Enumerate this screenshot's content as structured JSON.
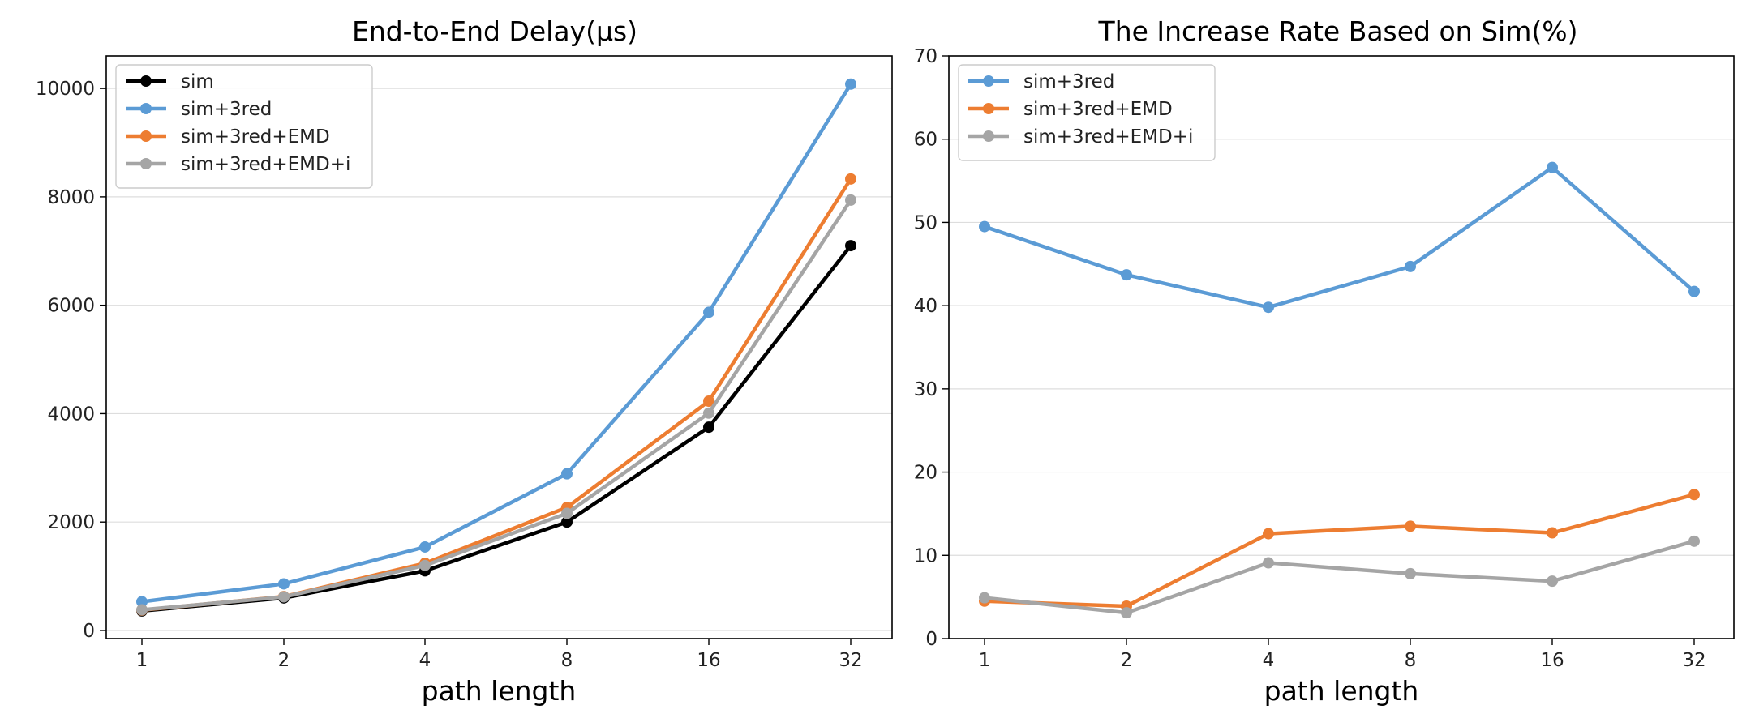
{
  "colors": {
    "sim": "#000000",
    "blue": "#5b9bd5",
    "orange": "#ed7d31",
    "gray": "#a5a5a5",
    "grid": "#dddddd"
  },
  "chart_data": [
    {
      "type": "line",
      "title": "End-to-End Delay(μs)",
      "xlabel": "path length",
      "ylabel": "",
      "categories": [
        "1",
        "2",
        "4",
        "8",
        "16",
        "32"
      ],
      "yticks": [
        0,
        2000,
        4000,
        6000,
        8000,
        10000
      ],
      "ytick_labels": [
        "0",
        "2000",
        "4000",
        "6000",
        "8000",
        "10000"
      ],
      "ylim": [
        -150,
        10600
      ],
      "grid": "horizontal",
      "legend_position": "top-left",
      "series": [
        {
          "name": "sim",
          "color": "#000000",
          "values": [
            360,
            600,
            1100,
            2000,
            3750,
            7100
          ]
        },
        {
          "name": "sim+3red",
          "color": "#5b9bd5",
          "values": [
            530,
            860,
            1540,
            2890,
            5870,
            10080
          ]
        },
        {
          "name": "sim+3red+EMD",
          "color": "#ed7d31",
          "values": [
            375,
            625,
            1240,
            2270,
            4230,
            8330
          ]
        },
        {
          "name": "sim+3red+EMD+i",
          "color": "#a5a5a5",
          "values": [
            380,
            620,
            1200,
            2160,
            4010,
            7940
          ]
        }
      ]
    },
    {
      "type": "line",
      "title": "The Increase Rate Based on Sim(%)",
      "xlabel": "path length",
      "ylabel": "",
      "categories": [
        "1",
        "2",
        "4",
        "8",
        "16",
        "32"
      ],
      "yticks": [
        0,
        10,
        20,
        30,
        40,
        50,
        60,
        70
      ],
      "ytick_labels": [
        "0",
        "10",
        "20",
        "30",
        "40",
        "50",
        "60",
        "70"
      ],
      "ylim": [
        0,
        70
      ],
      "grid": "horizontal",
      "legend_position": "top-left",
      "series": [
        {
          "name": "sim+3red",
          "color": "#5b9bd5",
          "values": [
            49.5,
            43.7,
            39.8,
            44.7,
            56.6,
            41.7
          ]
        },
        {
          "name": "sim+3red+EMD",
          "color": "#ed7d31",
          "values": [
            4.5,
            3.9,
            12.6,
            13.5,
            12.7,
            17.3
          ]
        },
        {
          "name": "sim+3red+EMD+i",
          "color": "#a5a5a5",
          "values": [
            4.9,
            3.1,
            9.1,
            7.8,
            6.9,
            11.7
          ]
        }
      ]
    }
  ]
}
